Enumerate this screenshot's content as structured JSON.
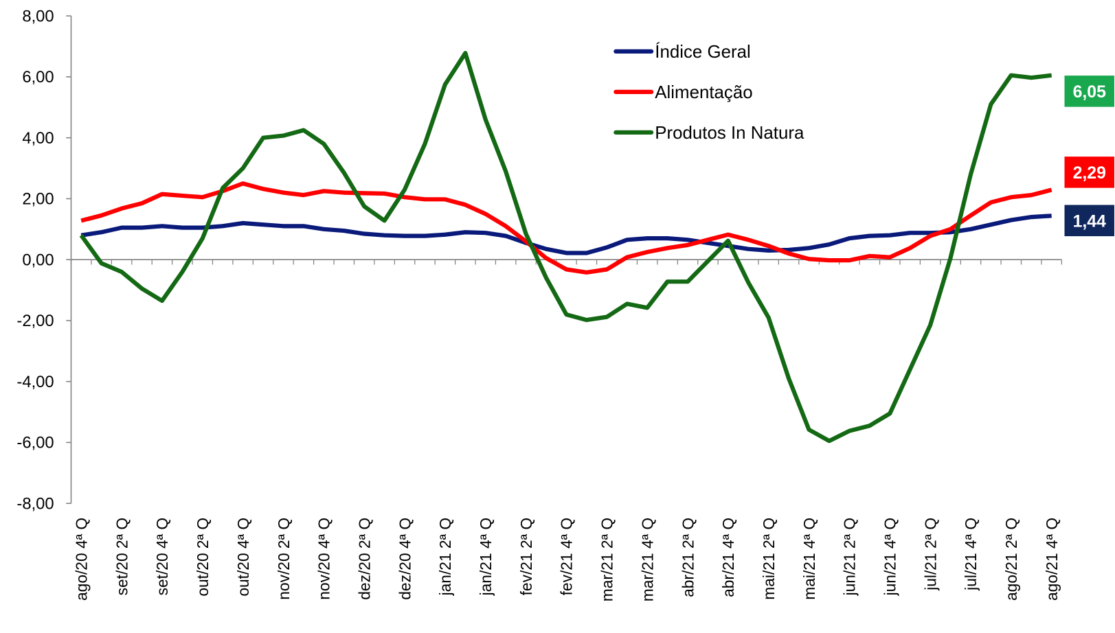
{
  "chart_data": {
    "type": "line",
    "categories": [
      "ago/20 4ª Q",
      null,
      "set/20 2ª Q",
      null,
      "set/20 4ª Q",
      null,
      "out/20 2ª Q",
      null,
      "out/20 4ª Q",
      null,
      "nov/20 2ª Q",
      null,
      "nov/20 4ª Q",
      null,
      "dez/20 2ª Q",
      null,
      "dez/20 4ª Q",
      null,
      "jan/21 2ª Q",
      null,
      "jan/21 4ª Q",
      null,
      "fev/21 2ª Q",
      null,
      "fev/21 4ª Q",
      null,
      "mar/21 2ª Q",
      null,
      "mar/21 4ª Q",
      null,
      "abr/21 2ª Q",
      null,
      "abr/21 4ª Q",
      null,
      "mai/21 2ª Q",
      null,
      "mai/21 4ª Q",
      null,
      "jun/21 2ª Q",
      null,
      "jun/21 4ª Q",
      null,
      "jul/21 2ª Q",
      null,
      "jul/21 4ª Q",
      null,
      "ago/21 2ª Q",
      null,
      "ago/21 4ª Q"
    ],
    "series": [
      {
        "name": "Índice Geral",
        "color": "#0a1a7a",
        "values": [
          0.8,
          0.9,
          1.05,
          1.05,
          1.1,
          1.05,
          1.05,
          1.1,
          1.2,
          1.15,
          1.1,
          1.1,
          1.0,
          0.95,
          0.85,
          0.8,
          0.78,
          0.78,
          0.82,
          0.9,
          0.88,
          0.78,
          0.55,
          0.35,
          0.22,
          0.22,
          0.4,
          0.65,
          0.7,
          0.7,
          0.65,
          0.55,
          0.45,
          0.35,
          0.3,
          0.32,
          0.38,
          0.5,
          0.7,
          0.78,
          0.8,
          0.88,
          0.88,
          0.9,
          1.0,
          1.15,
          1.3,
          1.4,
          1.44
        ],
        "value_labels": [
          null,
          null,
          null,
          null,
          null,
          null,
          null,
          null,
          null,
          null,
          null,
          null,
          null,
          null,
          null,
          null,
          null,
          null,
          null,
          null,
          null,
          null,
          null,
          null,
          null,
          null,
          null,
          null,
          null,
          null,
          null,
          null,
          null,
          null,
          null,
          null,
          null,
          null,
          null,
          null,
          null,
          null,
          null,
          null,
          null,
          null,
          null,
          null,
          "1,44"
        ],
        "label_color": "#10275e"
      },
      {
        "name": "Alimentação",
        "color": "#ff0000",
        "values": [
          1.28,
          1.45,
          1.68,
          1.85,
          2.15,
          2.1,
          2.05,
          2.25,
          2.5,
          2.32,
          2.2,
          2.12,
          2.25,
          2.2,
          2.18,
          2.17,
          2.05,
          1.98,
          1.98,
          1.8,
          1.5,
          1.1,
          0.6,
          0.05,
          -0.32,
          -0.42,
          -0.32,
          0.08,
          0.25,
          0.38,
          0.48,
          0.65,
          0.82,
          0.65,
          0.45,
          0.2,
          0.02,
          -0.02,
          -0.02,
          0.12,
          0.08,
          0.38,
          0.78,
          1.0,
          1.45,
          1.88,
          2.05,
          2.12,
          2.29
        ],
        "value_labels": [
          null,
          null,
          null,
          null,
          null,
          null,
          null,
          null,
          null,
          null,
          null,
          null,
          null,
          null,
          null,
          null,
          null,
          null,
          null,
          null,
          null,
          null,
          null,
          null,
          null,
          null,
          null,
          null,
          null,
          null,
          null,
          null,
          null,
          null,
          null,
          null,
          null,
          null,
          null,
          null,
          null,
          null,
          null,
          null,
          null,
          null,
          null,
          null,
          "2,29"
        ],
        "label_color": "#ff0000"
      },
      {
        "name": "Produtos In Natura",
        "color": "#146914",
        "values": [
          0.8,
          -0.12,
          -0.4,
          -0.95,
          -1.35,
          -0.4,
          0.7,
          2.35,
          3.0,
          4.0,
          4.07,
          4.25,
          3.8,
          2.85,
          1.75,
          1.28,
          2.3,
          3.8,
          5.75,
          6.78,
          4.6,
          2.9,
          0.85,
          -0.6,
          -1.8,
          -1.98,
          -1.88,
          -1.45,
          -1.58,
          -0.72,
          -0.72,
          -0.05,
          0.62,
          -0.75,
          -1.9,
          -3.9,
          -5.58,
          -5.95,
          -5.62,
          -5.45,
          -5.05,
          -3.6,
          -2.15,
          0.05,
          2.8,
          5.1,
          6.05,
          5.97,
          6.05
        ],
        "value_labels": [
          null,
          null,
          null,
          null,
          null,
          null,
          null,
          null,
          null,
          null,
          null,
          null,
          null,
          null,
          null,
          null,
          null,
          null,
          null,
          null,
          null,
          null,
          null,
          null,
          null,
          null,
          null,
          null,
          null,
          null,
          null,
          null,
          null,
          null,
          null,
          null,
          null,
          null,
          null,
          null,
          null,
          null,
          null,
          null,
          null,
          null,
          null,
          null,
          "6,05"
        ],
        "label_color": "#1aa84f"
      }
    ],
    "ylim": [
      -8,
      8
    ],
    "yticks": [
      {
        "value": -8,
        "label": "-8,00"
      },
      {
        "value": -6,
        "label": "-6,00"
      },
      {
        "value": -4,
        "label": "-4,00"
      },
      {
        "value": -2,
        "label": "-2,00"
      },
      {
        "value": 0,
        "label": "0,00"
      },
      {
        "value": 2,
        "label": "2,00"
      },
      {
        "value": 4,
        "label": "4,00"
      },
      {
        "value": 6,
        "label": "6,00"
      },
      {
        "value": 8,
        "label": "8,00"
      }
    ],
    "grid": false,
    "legend": "top"
  }
}
